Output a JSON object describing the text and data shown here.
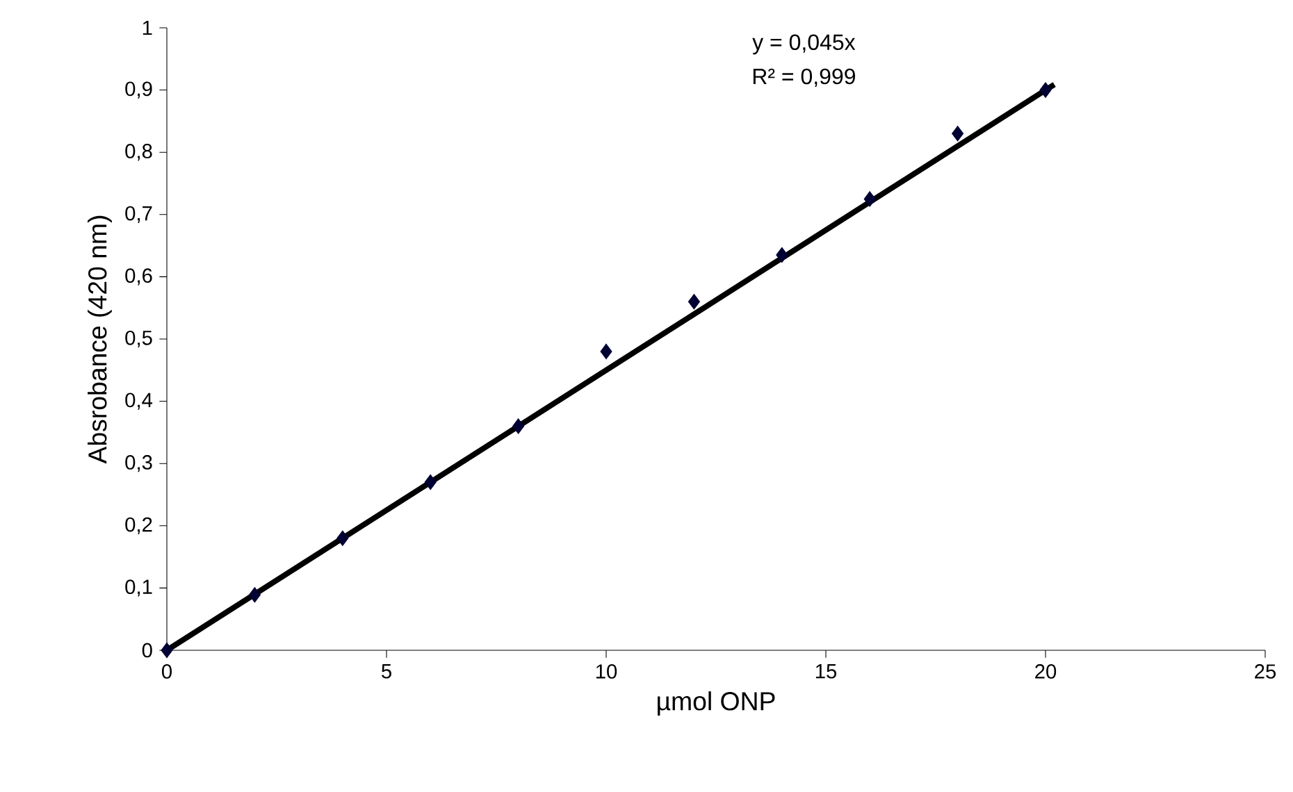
{
  "chart_data": {
    "type": "scatter",
    "xlabel": "µmol ONP",
    "ylabel": "Absrobance (420 nm)",
    "annotations": [
      "y = 0,045x",
      "R² = 0,999"
    ],
    "xlim": [
      0,
      25
    ],
    "ylim": [
      0,
      1
    ],
    "xticks": [
      0,
      5,
      10,
      15,
      20,
      25
    ],
    "yticks": [
      0,
      {
        "value": 0.1,
        "label": "0,1"
      },
      {
        "value": 0.2,
        "label": "0,2"
      },
      {
        "value": 0.3,
        "label": "0,3"
      },
      {
        "value": 0.4,
        "label": "0,4"
      },
      {
        "value": 0.5,
        "label": "0,5"
      },
      {
        "value": 0.6,
        "label": "0,6"
      },
      {
        "value": 0.7,
        "label": "0,7"
      },
      {
        "value": 0.8,
        "label": "0,8"
      },
      {
        "value": 0.9,
        "label": "0,9"
      },
      1
    ],
    "series": [
      {
        "color": "#000033",
        "marker": "diamond",
        "x": [
          0,
          2,
          4,
          6,
          8,
          10,
          12,
          14,
          16,
          18,
          20
        ],
        "values": [
          0,
          0.089,
          0.18,
          0.27,
          0.36,
          0.48,
          0.56,
          0.635,
          0.725,
          0.83,
          0.9
        ]
      },
      {
        "type": "line",
        "color": "#000000",
        "line_style": "solid",
        "x": [
          0,
          20.2
        ],
        "values": [
          0,
          0.909
        ]
      }
    ]
  }
}
